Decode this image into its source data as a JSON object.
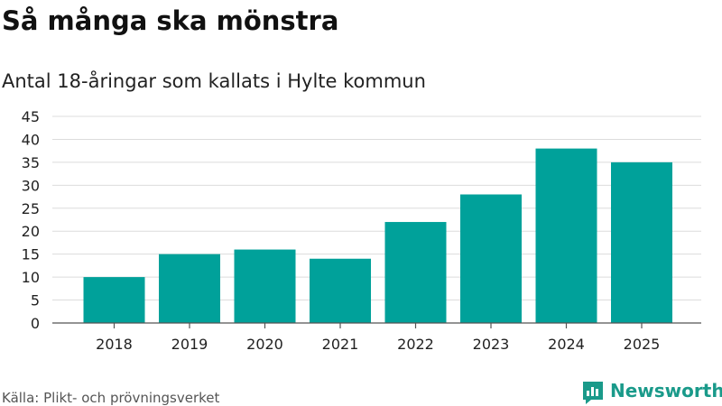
{
  "chart_data": {
    "type": "bar",
    "title": "Så många ska mönstra",
    "subtitle": "Antal 18-åringar som kallats i Hylte kommun",
    "categories": [
      "2018",
      "2019",
      "2020",
      "2021",
      "2022",
      "2023",
      "2024",
      "2025"
    ],
    "values": [
      10,
      15,
      16,
      14,
      22,
      28,
      38,
      35
    ],
    "ylim": [
      0,
      45
    ],
    "yticks": [
      0,
      5,
      10,
      15,
      20,
      25,
      30,
      35,
      40,
      45
    ],
    "bar_color": "#00a19a",
    "grid": true,
    "xlabel": "",
    "ylabel": ""
  },
  "footer": {
    "source": "Källa: Plikt- och prövningsverket",
    "brand": "Newsworthy",
    "brand_icon": "bar-chart-logo-icon",
    "brand_color": "#1a9a8a"
  }
}
